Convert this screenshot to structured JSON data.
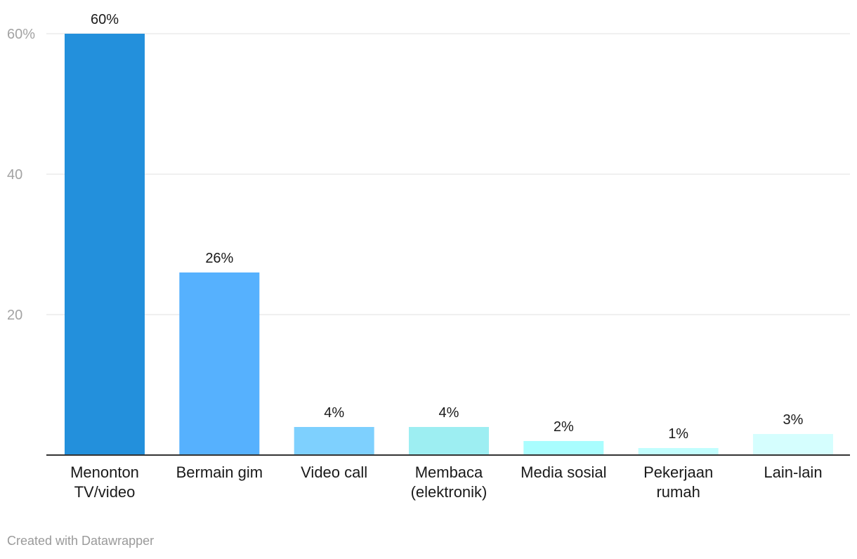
{
  "chart_data": {
    "type": "bar",
    "categories": [
      [
        "Menonton",
        "TV/video"
      ],
      [
        "Bermain gim"
      ],
      [
        "Video call"
      ],
      [
        "Membaca",
        "(elektronik)"
      ],
      [
        "Media sosial"
      ],
      [
        "Pekerjaan",
        "rumah"
      ],
      [
        "Lain-lain"
      ]
    ],
    "values": [
      60,
      26,
      4,
      4,
      2,
      1,
      3
    ],
    "value_labels": [
      "60%",
      "26%",
      "4%",
      "4%",
      "2%",
      "1%",
      "3%"
    ],
    "colors": [
      "#2390dc",
      "#56b1fe",
      "#7ed0fe",
      "#9deef2",
      "#a9fdfe",
      "#c2fefe",
      "#d5fefe"
    ],
    "y_ticks": [
      {
        "value": 60,
        "label": "60%"
      },
      {
        "value": 40,
        "label": "40"
      },
      {
        "value": 20,
        "label": "20"
      }
    ],
    "ylim": [
      0,
      60
    ],
    "grid": true,
    "title": "",
    "xlabel": "",
    "ylabel": ""
  },
  "footer": {
    "credit": "Created with Datawrapper"
  }
}
